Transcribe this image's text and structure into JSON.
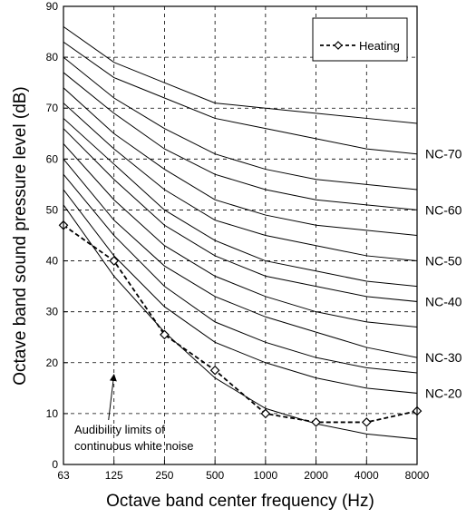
{
  "chart_data": {
    "type": "line",
    "x_categories": [
      "63",
      "125",
      "250",
      "500",
      "1000",
      "2000",
      "4000",
      "8000"
    ],
    "xlabel": "Octave band center frequency (Hz)",
    "ylabel": "Octave band sound pressure level (dB)",
    "ylim": [
      0,
      90
    ],
    "yticks": [
      "0",
      "10",
      "20",
      "30",
      "40",
      "50",
      "60",
      "70",
      "80",
      "90"
    ],
    "grid": "dashed",
    "legend": {
      "position": "top-right",
      "entries": [
        "Heating"
      ]
    },
    "series": [
      {
        "name": "Heating",
        "style": "dashed-diamond",
        "values": [
          47,
          40,
          25.5,
          18.5,
          10,
          8.3,
          8.3,
          10.5
        ]
      }
    ],
    "nc_curves": [
      {
        "label": "",
        "values": [
          51,
          37,
          26,
          17,
          11,
          8,
          6,
          5
        ]
      },
      {
        "label": "NC-20",
        "values": [
          54,
          41,
          31,
          24,
          20,
          17,
          15,
          14
        ]
      },
      {
        "label": "",
        "values": [
          57,
          45,
          35,
          28,
          24,
          21,
          19,
          18
        ]
      },
      {
        "label": "NC-30",
        "values": [
          60,
          48,
          39,
          33,
          29,
          26,
          23,
          21
        ]
      },
      {
        "label": "",
        "values": [
          63,
          52,
          43,
          37,
          33,
          30,
          28,
          27
        ]
      },
      {
        "label": "NC-40",
        "values": [
          66,
          56,
          47,
          41,
          37,
          35,
          33,
          32
        ]
      },
      {
        "label": "",
        "values": [
          68,
          59,
          50,
          44,
          40,
          38,
          36,
          35
        ]
      },
      {
        "label": "NC-50",
        "values": [
          71,
          62,
          54,
          48,
          45,
          43,
          41,
          40
        ]
      },
      {
        "label": "",
        "values": [
          74,
          65,
          58,
          52,
          49,
          47,
          46,
          45
        ]
      },
      {
        "label": "NC-60",
        "values": [
          77,
          69,
          62,
          57,
          54,
          52,
          51,
          50
        ]
      },
      {
        "label": "",
        "values": [
          80,
          72,
          66,
          61,
          58,
          56,
          55,
          54
        ]
      },
      {
        "label": "NC-70",
        "values": [
          83,
          76,
          72,
          68,
          66,
          64,
          62,
          61
        ]
      },
      {
        "label": "",
        "values": [
          86,
          79,
          75,
          71,
          70,
          69,
          68,
          67
        ]
      }
    ],
    "annotation": {
      "lines": [
        "Audibility limits of",
        "continuous white noise"
      ],
      "points_to": {
        "x": "125",
        "y": 18
      }
    }
  }
}
